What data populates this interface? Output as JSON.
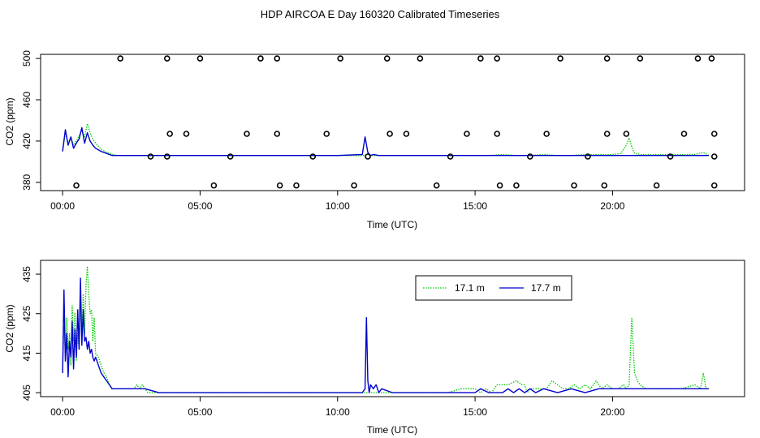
{
  "title": "HDP AIRCOA E  Day 160320  Calibrated Timeseries",
  "chart_data": [
    {
      "type": "line",
      "xlabel": "Time (UTC)",
      "ylabel": "CO2 (ppm)",
      "xlim": [
        -0.8,
        24.8
      ],
      "ylim": [
        372,
        504
      ],
      "x_ticks": [
        {
          "v": 0,
          "label": "00:00"
        },
        {
          "v": 5,
          "label": "05:00"
        },
        {
          "v": 10,
          "label": "10:00"
        },
        {
          "v": 15,
          "label": "15:00"
        },
        {
          "v": 20,
          "label": "20:00"
        }
      ],
      "y_ticks": [
        380,
        420,
        460,
        500
      ],
      "series": [
        {
          "color": "#00cc00",
          "style": "dotted",
          "x": [
            0,
            0.1,
            0.2,
            0.3,
            0.4,
            0.5,
            0.6,
            0.7,
            0.8,
            0.9,
            1.0,
            1.1,
            1.2,
            1.4,
            1.6,
            1.8,
            2.0,
            2.5,
            3,
            4,
            5,
            6,
            7,
            8,
            9,
            10,
            11,
            11.1,
            11.2,
            11.5,
            12,
            13,
            14,
            15,
            15.5,
            16,
            16.5,
            17,
            17.5,
            18,
            18.5,
            19,
            19.5,
            20,
            20.3,
            20.5,
            20.6,
            20.7,
            20.8,
            21,
            22,
            23,
            23.3,
            23.5
          ],
          "y": [
            410,
            428,
            418,
            424,
            416,
            420,
            425,
            430,
            424,
            437,
            428,
            422,
            418,
            412,
            409,
            407,
            406,
            406,
            406,
            406,
            406,
            406,
            406,
            406,
            406,
            406,
            406,
            408,
            406,
            406,
            406,
            406,
            406,
            406,
            406,
            407,
            406,
            406,
            407,
            406,
            406,
            407,
            407,
            407,
            408,
            416,
            423,
            414,
            408,
            407,
            407,
            407,
            409,
            406
          ]
        },
        {
          "color": "#0000cc",
          "style": "solid",
          "x": [
            0,
            0.1,
            0.2,
            0.3,
            0.4,
            0.5,
            0.6,
            0.7,
            0.8,
            0.9,
            1.0,
            1.1,
            1.2,
            1.4,
            1.6,
            1.8,
            2.0,
            2.5,
            3,
            4,
            5,
            6,
            7,
            8,
            9,
            10,
            10.9,
            11,
            11.1,
            11.2,
            11.3,
            11.5,
            12,
            13,
            14,
            15,
            15.5,
            16,
            16.5,
            17,
            17.5,
            18,
            18.5,
            19,
            19.5,
            20,
            20.5,
            20.7,
            21,
            22,
            23,
            23.5
          ],
          "y": [
            410,
            431,
            416,
            424,
            413,
            418,
            422,
            433,
            418,
            428,
            420,
            416,
            413,
            410,
            408,
            406,
            406,
            406,
            406,
            406,
            406,
            406,
            406,
            406,
            406,
            406,
            407,
            424,
            409,
            406,
            407,
            406,
            406,
            406,
            406,
            406,
            406,
            406,
            406,
            406,
            406,
            406,
            406,
            406,
            406,
            406,
            406,
            406,
            406,
            406,
            406,
            406
          ]
        }
      ],
      "flags_x": [
        0.5,
        2.1,
        3.2,
        3.8,
        3.9,
        3.8,
        4.5,
        5.0,
        5.5,
        6.1,
        6.7,
        7.2,
        7.8,
        7.8,
        7.9,
        8.5,
        9.1,
        9.6,
        10.1,
        10.6,
        11.1,
        11.8,
        11.9,
        12.5,
        13.0,
        13.6,
        14.1,
        14.7,
        15.2,
        15.8,
        15.8,
        15.9,
        16.5,
        17.0,
        17.6,
        18.1,
        18.6,
        19.1,
        19.7,
        19.8,
        19.8,
        20.5,
        21.0,
        21.6,
        22.1,
        22.6,
        23.1,
        23.6,
        23.7,
        23.7,
        23.7
      ],
      "flags_y": [
        377,
        500,
        405,
        405,
        427,
        500,
        427,
        500,
        377,
        405,
        427,
        500,
        500,
        427,
        377,
        377,
        405,
        427,
        500,
        377,
        405,
        500,
        427,
        427,
        500,
        377,
        405,
        427,
        500,
        500,
        427,
        377,
        377,
        405,
        427,
        500,
        377,
        405,
        377,
        427,
        500,
        427,
        500,
        377,
        405,
        427,
        500,
        500,
        427,
        405,
        377
      ]
    },
    {
      "type": "line",
      "xlabel": "Time (UTC)",
      "ylabel": "CO2 (ppm)",
      "xlim": [
        -0.8,
        24.8
      ],
      "ylim": [
        404,
        438.5
      ],
      "x_ticks": [
        {
          "v": 0,
          "label": "00:00"
        },
        {
          "v": 5,
          "label": "05:00"
        },
        {
          "v": 10,
          "label": "10:00"
        },
        {
          "v": 15,
          "label": "15:00"
        },
        {
          "v": 20,
          "label": "20:00"
        }
      ],
      "y_ticks": [
        405,
        415,
        425,
        435
      ],
      "legend": {
        "position": "top-right",
        "entries": [
          "17.1 m",
          "17.7 m"
        ]
      },
      "series": [
        {
          "name": "17.1 m",
          "color": "#00cc00",
          "style": "dotted",
          "x": [
            0,
            0.05,
            0.1,
            0.15,
            0.2,
            0.25,
            0.3,
            0.35,
            0.4,
            0.45,
            0.5,
            0.55,
            0.6,
            0.65,
            0.7,
            0.75,
            0.8,
            0.85,
            0.9,
            0.95,
            1.0,
            1.05,
            1.1,
            1.15,
            1.2,
            1.3,
            1.4,
            1.5,
            1.6,
            1.7,
            1.8,
            2.0,
            2.3,
            2.6,
            2.7,
            2.8,
            2.9,
            3.0,
            3.1,
            3.5,
            4,
            4.5,
            5,
            6,
            7,
            8,
            9,
            10,
            10.8,
            10.9,
            11.0,
            11.1,
            11.2,
            11.3,
            11.5,
            12,
            13,
            14,
            14.5,
            15,
            15.2,
            15.4,
            15.6,
            15.8,
            16.0,
            16.2,
            16.5,
            16.7,
            16.8,
            16.9,
            17.0,
            17.2,
            17.4,
            17.6,
            17.8,
            18,
            18.2,
            18.4,
            18.6,
            18.8,
            19.0,
            19.2,
            19.4,
            19.6,
            19.8,
            20.0,
            20.2,
            20.4,
            20.5,
            20.6,
            20.7,
            20.8,
            20.9,
            21.0,
            21.2,
            21.5,
            22,
            22.5,
            23,
            23.2,
            23.3,
            23.4,
            23.5
          ],
          "y": [
            410,
            422,
            415,
            424,
            416,
            420,
            412,
            427,
            418,
            425,
            413,
            420,
            416,
            428,
            419,
            430,
            420,
            432,
            437,
            430,
            425,
            426,
            418,
            424,
            415,
            414,
            412,
            410,
            409,
            407,
            406,
            406,
            406,
            406,
            407,
            406,
            407,
            406,
            405,
            405,
            405,
            405,
            405,
            405,
            405,
            405,
            405,
            405,
            405,
            405,
            405,
            405,
            405,
            405,
            405,
            405,
            405,
            405,
            406,
            406,
            405,
            406,
            405,
            407,
            407,
            407,
            408,
            407,
            407,
            405,
            406,
            406,
            406,
            406,
            408,
            407,
            406,
            406,
            407,
            406,
            407,
            406,
            408,
            406,
            407,
            406,
            406,
            407,
            406,
            407,
            424,
            410,
            408,
            407,
            406,
            406,
            406,
            406,
            407,
            406,
            410,
            406,
            406
          ]
        },
        {
          "name": "17.7 m",
          "color": "#0000cc",
          "style": "solid",
          "x": [
            0,
            0.05,
            0.1,
            0.15,
            0.2,
            0.25,
            0.3,
            0.35,
            0.4,
            0.45,
            0.5,
            0.55,
            0.6,
            0.65,
            0.7,
            0.75,
            0.8,
            0.85,
            0.9,
            0.95,
            1.0,
            1.05,
            1.1,
            1.15,
            1.2,
            1.3,
            1.4,
            1.5,
            1.6,
            1.7,
            1.8,
            2.0,
            2.5,
            3,
            3.5,
            4,
            4.5,
            5,
            6,
            7,
            8,
            9,
            10,
            10.8,
            10.9,
            11.0,
            11.05,
            11.1,
            11.15,
            11.2,
            11.3,
            11.4,
            11.5,
            11.6,
            12,
            13,
            14,
            15,
            15.2,
            15.5,
            16,
            16.2,
            16.4,
            16.6,
            16.8,
            17.0,
            17.2,
            17.5,
            18,
            18.5,
            19,
            19.5,
            20,
            20.5,
            21,
            21.5,
            22,
            22.5,
            23,
            23.5
          ],
          "y": [
            410,
            431,
            413,
            420,
            409,
            418,
            414,
            423,
            411,
            421,
            414,
            426,
            416,
            434,
            417,
            426,
            418,
            419,
            416,
            418,
            415,
            416,
            414,
            413,
            414,
            412,
            410,
            409,
            408,
            407,
            406,
            406,
            406,
            406,
            405,
            405,
            405,
            405,
            405,
            405,
            405,
            405,
            405,
            405,
            405,
            406,
            424,
            408,
            405,
            407,
            406,
            407,
            405,
            406,
            405,
            405,
            405,
            405,
            406,
            405,
            405,
            406,
            405,
            406,
            405,
            406,
            405,
            406,
            405,
            406,
            405,
            406,
            406,
            406,
            406,
            406,
            406,
            406,
            406,
            406
          ]
        }
      ]
    }
  ]
}
